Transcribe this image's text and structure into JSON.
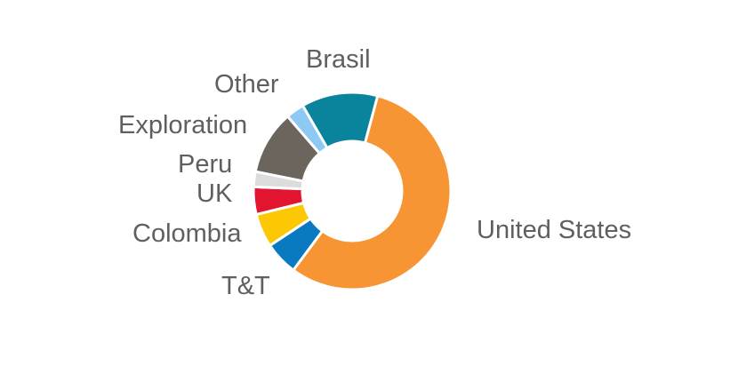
{
  "chart_data": {
    "type": "pie",
    "donut": true,
    "title": "",
    "categories": [
      "United States",
      "T&T",
      "Colombia",
      "UK",
      "Peru",
      "Exploration",
      "Other",
      "Brasil"
    ],
    "values": [
      56,
      5.5,
      5.5,
      4.5,
      2.5,
      10.5,
      3.0,
      12.5
    ],
    "unit": "%",
    "legend": "none",
    "colors": [
      "#f79433",
      "#0a7ac0",
      "#fcc803",
      "#e2142f",
      "#dcdcdc",
      "#6c655e",
      "#8ec9f4",
      "#0a839c"
    ]
  }
}
